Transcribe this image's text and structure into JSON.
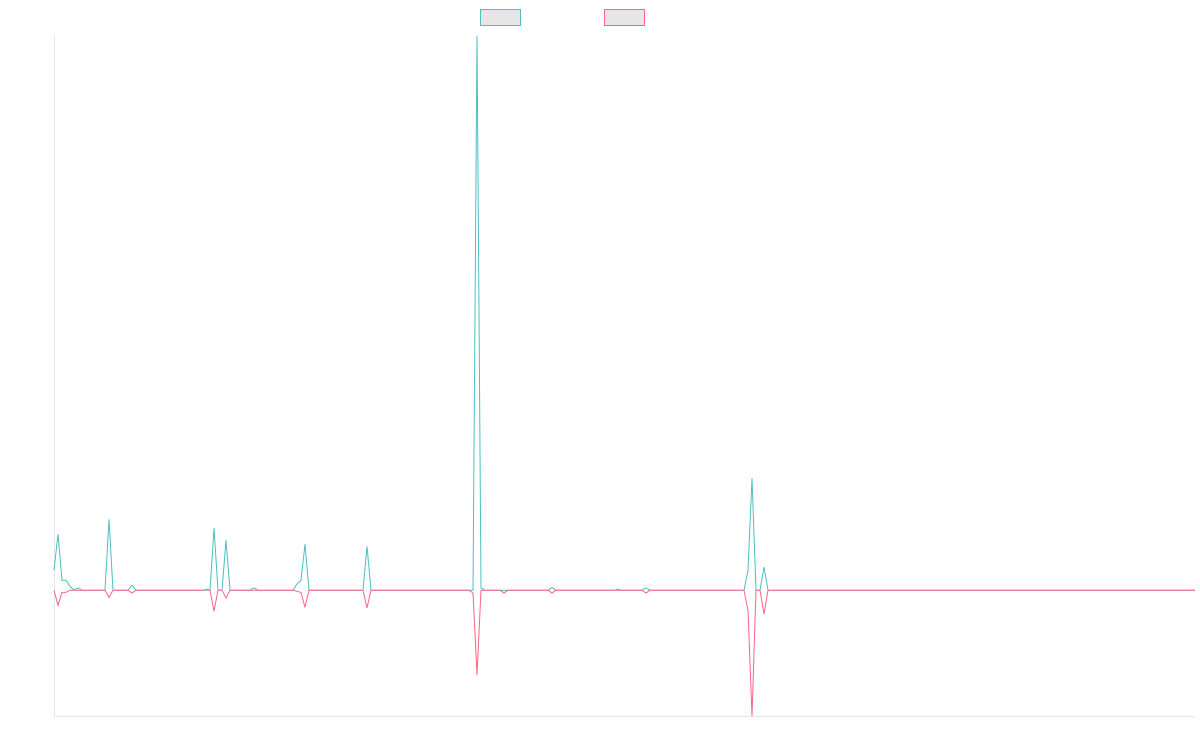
{
  "chart_data": {
    "type": "line",
    "xlim": [
      0,
      1141
    ],
    "ylim": [
      -0.227,
      1
    ],
    "series": [
      {
        "color": "#4bc0c0",
        "x": [
          0,
          4,
          8,
          12,
          16,
          20,
          24,
          28,
          51,
          55,
          59,
          74,
          78,
          82,
          156,
          160,
          164,
          168,
          172,
          176,
          196,
          200,
          204,
          239,
          243,
          247,
          251,
          255,
          309,
          313,
          317,
          419,
          423,
          427,
          431,
          494,
          498,
          502,
          560,
          564,
          568,
          588,
          592,
          596,
          690,
          694,
          698,
          702,
          706,
          710,
          714,
          1141
        ],
        "values": [
          0.036,
          0.101,
          0.018,
          0.018,
          0.007,
          0,
          0.004,
          0,
          0,
          0.128,
          0,
          0,
          0.009,
          0,
          0,
          0.112,
          0,
          0,
          0.09,
          0,
          0,
          0.004,
          0,
          0,
          0.011,
          0.018,
          0.083,
          0,
          0,
          0.079,
          0,
          0,
          1,
          0.004,
          0,
          0,
          0.005,
          0,
          0,
          0.002,
          0,
          0,
          0.004,
          0,
          0,
          0.036,
          0.202,
          0,
          0,
          0.042,
          0,
          0
        ]
      },
      {
        "color": "#ff6384",
        "x": [
          0,
          4,
          8,
          12,
          16,
          51,
          55,
          59,
          74,
          78,
          82,
          149,
          153,
          156,
          160,
          164,
          168,
          172,
          176,
          239,
          247,
          251,
          255,
          309,
          313,
          317,
          415,
          419,
          423,
          427,
          446,
          450,
          454,
          494,
          498,
          502,
          588,
          592,
          596,
          690,
          694,
          698,
          702,
          706,
          710,
          714,
          1141
        ],
        "values": [
          0,
          -0.027,
          -0.004,
          -0.004,
          0,
          0,
          -0.013,
          0,
          0,
          -0.005,
          0,
          0,
          0.002,
          0,
          -0.038,
          0,
          0,
          -0.014,
          0,
          0,
          -0.004,
          -0.031,
          0,
          0,
          -0.032,
          0,
          0,
          -0.005,
          -0.153,
          0,
          0,
          -0.005,
          0,
          0,
          -0.005,
          0,
          0,
          -0.005,
          0,
          0,
          -0.036,
          -0.227,
          0,
          0,
          -0.043,
          0,
          0
        ]
      }
    ]
  }
}
